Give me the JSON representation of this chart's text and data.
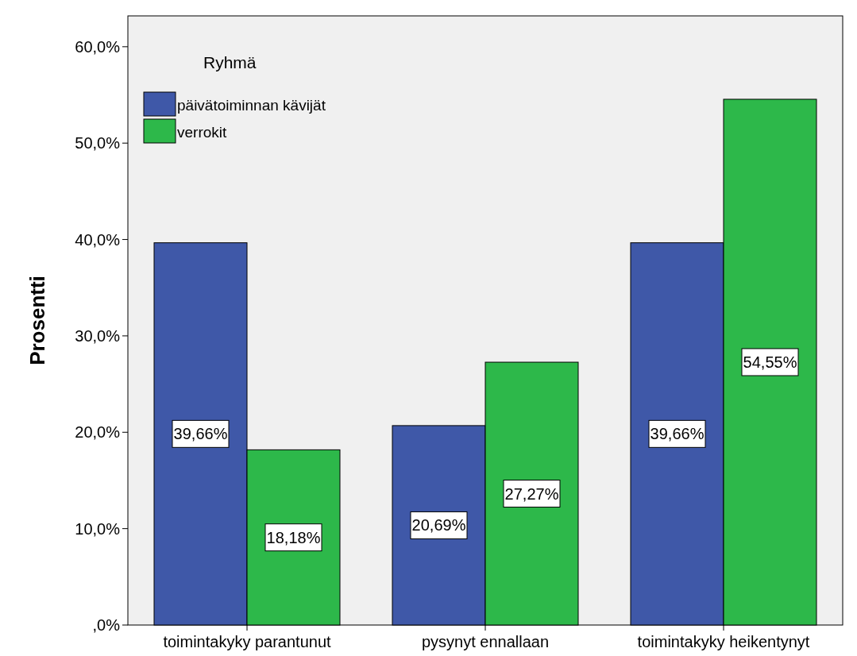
{
  "chart_data": {
    "type": "bar",
    "ylabel": "Prosentti",
    "legend_title": "Ryhmä",
    "legend": "top left",
    "categories": [
      "toimintakyky parantunut",
      "pysynyt ennallaan",
      "toimintakyky heikentynyt"
    ],
    "series": [
      {
        "name": "päivätoiminnan kävijät",
        "color": "#3f58a8",
        "values": [
          39.66,
          20.69,
          39.66
        ],
        "value_labels": [
          "39,66%",
          "20,69%",
          "39,66%"
        ]
      },
      {
        "name": "verrokit",
        "color": "#2db84a",
        "values": [
          18.18,
          27.27,
          54.55
        ],
        "value_labels": [
          "18,18%",
          "27,27%",
          "54,55%"
        ]
      }
    ],
    "ylim": [
      0,
      63.2
    ],
    "yticks": [
      {
        "value": 0,
        "label": ",0%"
      },
      {
        "value": 10,
        "label": "10,0%"
      },
      {
        "value": 20,
        "label": "20,0%"
      },
      {
        "value": 30,
        "label": "30,0%"
      },
      {
        "value": 40,
        "label": "40,0%"
      },
      {
        "value": 50,
        "label": "50,0%"
      },
      {
        "value": 60,
        "label": "60,0%"
      }
    ],
    "grid": false
  }
}
